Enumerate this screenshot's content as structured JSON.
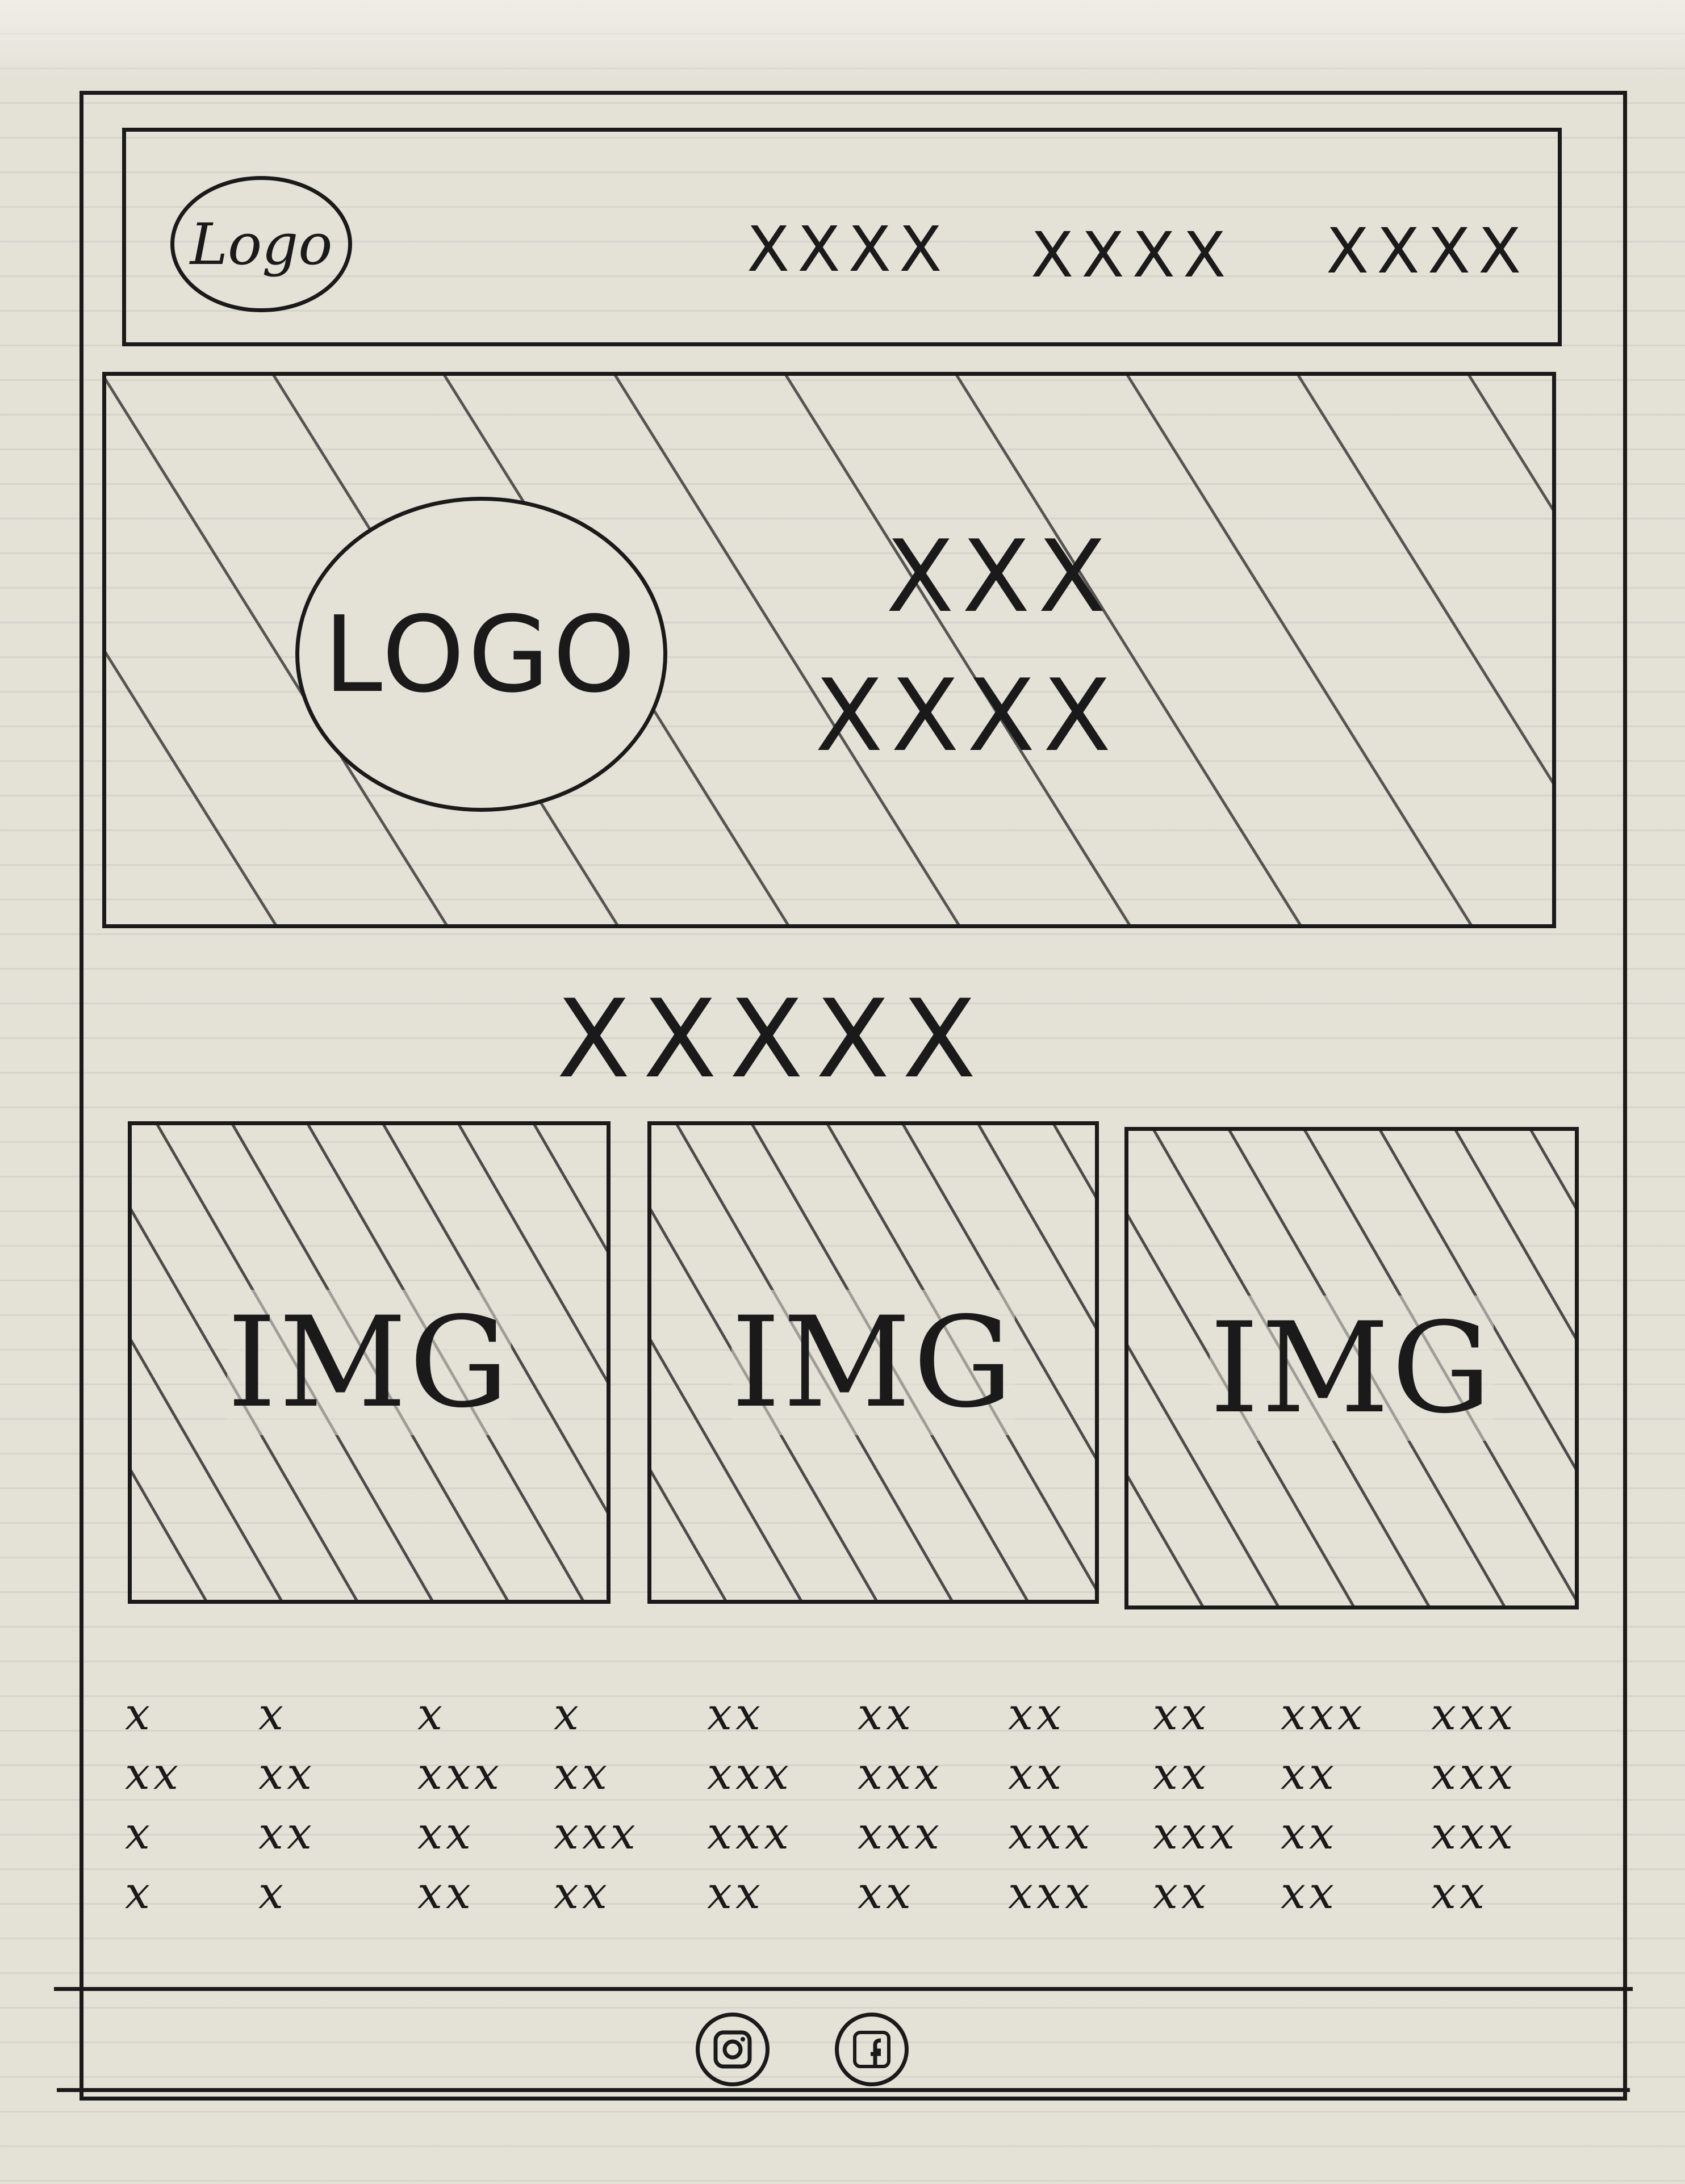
{
  "header": {
    "logo": "Logo",
    "nav": [
      "XXXX",
      "XXXX",
      "XXXX"
    ]
  },
  "hero": {
    "logo": "LOGO",
    "line1": "XXX",
    "line2": "XXXX"
  },
  "section": {
    "title": "XXXXX"
  },
  "gallery": {
    "images": [
      {
        "label": "IMG"
      },
      {
        "label": "IMG"
      },
      {
        "label": "IMG"
      }
    ]
  },
  "text_grid": {
    "columns": [
      [
        "x",
        "xx",
        "x",
        "x"
      ],
      [
        "x",
        "xx",
        "xx",
        "x"
      ],
      [
        "x",
        "xxx",
        "xx",
        "xx"
      ],
      [
        "x",
        "xx",
        "xxx",
        "xx"
      ],
      [
        "xx",
        "xxx",
        "xxx",
        "xx"
      ],
      [
        "xx",
        "xxx",
        "xxx",
        "xx"
      ],
      [
        "xx",
        "xx",
        "xxx",
        "xxx"
      ],
      [
        "xx",
        "xx",
        "xxx",
        "xx"
      ],
      [
        "xxx",
        "xx",
        "xx",
        "xx"
      ],
      [
        "xxx",
        "xxx",
        "xxx",
        "xx"
      ]
    ]
  },
  "footer": {
    "icons": [
      "instagram-icon",
      "facebook-icon"
    ]
  }
}
